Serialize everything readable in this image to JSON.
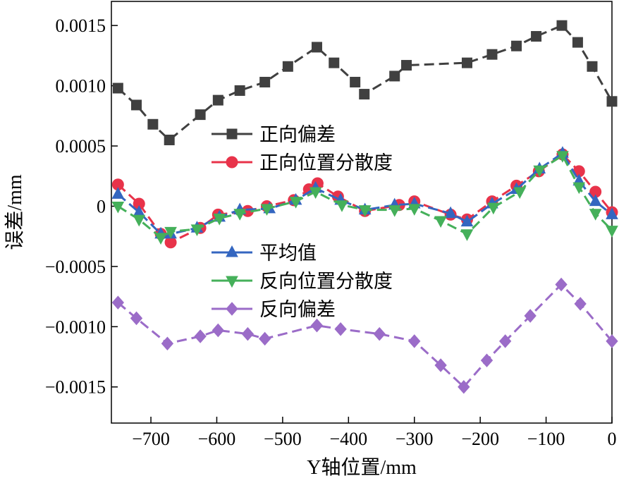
{
  "chart_data": {
    "type": "line",
    "xlabel": "Y轴位置/mm",
    "ylabel": "误差/mm",
    "xlim": [
      -760,
      0
    ],
    "ylim": [
      -0.0018,
      0.0017
    ],
    "x_ticks": [
      -700,
      -600,
      -500,
      -400,
      -300,
      -200,
      -100,
      0
    ],
    "x_tick_labels": [
      "−700",
      "−600",
      "−500",
      "−400",
      "−300",
      "−200",
      "−100",
      "0"
    ],
    "y_ticks": [
      -0.0015,
      -0.001,
      -0.0005,
      0,
      0.0005,
      0.001,
      0.0015
    ],
    "y_tick_labels": [
      "−0.0015",
      "−0.0010",
      "−0.0005",
      "0",
      "0.0005",
      "0.0010",
      "0.0015"
    ],
    "grid": false,
    "legend_groups": [
      {
        "placement": "upper-center",
        "series": [
          0,
          1
        ]
      },
      {
        "placement": "center",
        "series": [
          2,
          3,
          4
        ]
      }
    ],
    "series": [
      {
        "name": "正向偏差",
        "color": "#404040",
        "marker": "square",
        "points": [
          [
            -750,
            0.00098
          ],
          [
            -722,
            0.00084
          ],
          [
            -697,
            0.00068
          ],
          [
            -672,
            0.00055
          ],
          [
            -625,
            0.00076
          ],
          [
            -598,
            0.00088
          ],
          [
            -565,
            0.00096
          ],
          [
            -527,
            0.00103
          ],
          [
            -492,
            0.00116
          ],
          [
            -448,
            0.00132
          ],
          [
            -422,
            0.00119
          ],
          [
            -390,
            0.00103
          ],
          [
            -376,
            0.00093
          ],
          [
            -330,
            0.00108
          ],
          [
            -312,
            0.00117
          ],
          [
            -220,
            0.00119
          ],
          [
            -182,
            0.00126
          ],
          [
            -145,
            0.00133
          ],
          [
            -115,
            0.00141
          ],
          [
            -76,
            0.0015
          ],
          [
            -52,
            0.00136
          ],
          [
            -30,
            0.00116
          ],
          [
            0,
            0.00087
          ]
        ]
      },
      {
        "name": "正向位置分散度",
        "color": "#e8334a",
        "marker": "circle",
        "points": [
          [
            -750,
            0.00018
          ],
          [
            -718,
            2e-05
          ],
          [
            -685,
            -0.00023
          ],
          [
            -670,
            -0.0003
          ],
          [
            -625,
            -0.00018
          ],
          [
            -598,
            -7e-05
          ],
          [
            -553,
            -4e-05
          ],
          [
            -524,
            0.0
          ],
          [
            -483,
            5e-05
          ],
          [
            -460,
            0.00014
          ],
          [
            -447,
            0.00019
          ],
          [
            -416,
            8e-05
          ],
          [
            -375,
            -4e-05
          ],
          [
            -323,
            1e-05
          ],
          [
            -300,
            4e-05
          ],
          [
            -245,
            -7e-05
          ],
          [
            -220,
            -0.00011
          ],
          [
            -182,
            4e-05
          ],
          [
            -145,
            0.00017
          ],
          [
            -111,
            0.00029
          ],
          [
            -75,
            0.00043
          ],
          [
            -50,
            0.00029
          ],
          [
            -25,
            0.00012
          ],
          [
            0,
            -5e-05
          ]
        ]
      },
      {
        "name": "平均值",
        "color": "#3466c0",
        "marker": "triangle-up",
        "points": [
          [
            -750,
            0.0001
          ],
          [
            -718,
            -5e-05
          ],
          [
            -685,
            -0.00023
          ],
          [
            -670,
            -0.00023
          ],
          [
            -630,
            -0.00018
          ],
          [
            -596,
            -9e-05
          ],
          [
            -565,
            -3e-05
          ],
          [
            -520,
            -2e-05
          ],
          [
            -480,
            5e-05
          ],
          [
            -450,
            0.00015
          ],
          [
            -412,
            5e-05
          ],
          [
            -375,
            -3e-05
          ],
          [
            -330,
            1e-05
          ],
          [
            -300,
            2e-05
          ],
          [
            -245,
            -6e-05
          ],
          [
            -220,
            -0.00013
          ],
          [
            -182,
            2e-05
          ],
          [
            -145,
            0.00014
          ],
          [
            -110,
            0.00031
          ],
          [
            -75,
            0.00044
          ],
          [
            -50,
            0.00021
          ],
          [
            -25,
            4e-05
          ],
          [
            0,
            -7e-05
          ]
        ]
      },
      {
        "name": "反向位置分散度",
        "color": "#45b05a",
        "marker": "triangle-down",
        "points": [
          [
            -750,
            0.0
          ],
          [
            -718,
            -0.00011
          ],
          [
            -685,
            -0.00026
          ],
          [
            -670,
            -0.00021
          ],
          [
            -630,
            -0.00019
          ],
          [
            -596,
            -0.0001
          ],
          [
            -565,
            -6e-05
          ],
          [
            -524,
            -2e-05
          ],
          [
            -480,
            4e-05
          ],
          [
            -450,
            0.00012
          ],
          [
            -410,
            1e-05
          ],
          [
            -375,
            -3e-05
          ],
          [
            -330,
            -3e-05
          ],
          [
            -300,
            -2e-05
          ],
          [
            -260,
            -0.00012
          ],
          [
            -220,
            -0.00023
          ],
          [
            -180,
            -1e-05
          ],
          [
            -140,
            0.00012
          ],
          [
            -110,
            0.0003
          ],
          [
            -75,
            0.00042
          ],
          [
            -50,
            0.00016
          ],
          [
            -25,
            -6e-05
          ],
          [
            0,
            -0.0002
          ]
        ]
      },
      {
        "name": "反向偏差",
        "color": "#9b6cc8",
        "marker": "diamond",
        "points": [
          [
            -750,
            -0.0008
          ],
          [
            -722,
            -0.00093
          ],
          [
            -675,
            -0.00114
          ],
          [
            -625,
            -0.00108
          ],
          [
            -598,
            -0.00103
          ],
          [
            -553,
            -0.00106
          ],
          [
            -527,
            -0.0011
          ],
          [
            -448,
            -0.00099
          ],
          [
            -412,
            -0.00102
          ],
          [
            -353,
            -0.00106
          ],
          [
            -300,
            -0.00112
          ],
          [
            -260,
            -0.00132
          ],
          [
            -225,
            -0.0015
          ],
          [
            -190,
            -0.00128
          ],
          [
            -162,
            -0.00112
          ],
          [
            -124,
            -0.00091
          ],
          [
            -77,
            -0.00065
          ],
          [
            -48,
            -0.00081
          ],
          [
            0,
            -0.00112
          ]
        ]
      }
    ]
  }
}
